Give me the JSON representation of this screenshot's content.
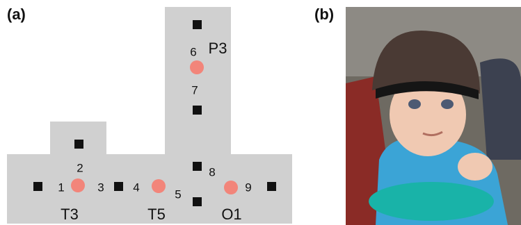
{
  "panel_a": {
    "label": "(a)",
    "channels": [
      "1",
      "2",
      "3",
      "4",
      "5",
      "6",
      "7",
      "8",
      "9"
    ],
    "regions": [
      "T3",
      "T5",
      "O1",
      "P3"
    ]
  },
  "panel_b": {
    "label": "(b)"
  }
}
